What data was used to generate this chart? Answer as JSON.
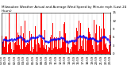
{
  "title": "Milwaukee Weather Actual and Average Wind Speed by Minute mph (Last 24 Hours)",
  "n_minutes": 1440,
  "seed": 42,
  "background_color": "#ffffff",
  "bar_color": "#ff0000",
  "avg_color": "#0000ff",
  "ylim": [
    0,
    15
  ],
  "yticks": [
    0,
    3,
    6,
    9,
    12,
    15
  ],
  "title_fontsize": 3.0,
  "axis_fontsize": 2.8,
  "n_xticks": 25,
  "avg_window": 60,
  "avg_marker_size": 0.8,
  "avg_marker_every": 8
}
